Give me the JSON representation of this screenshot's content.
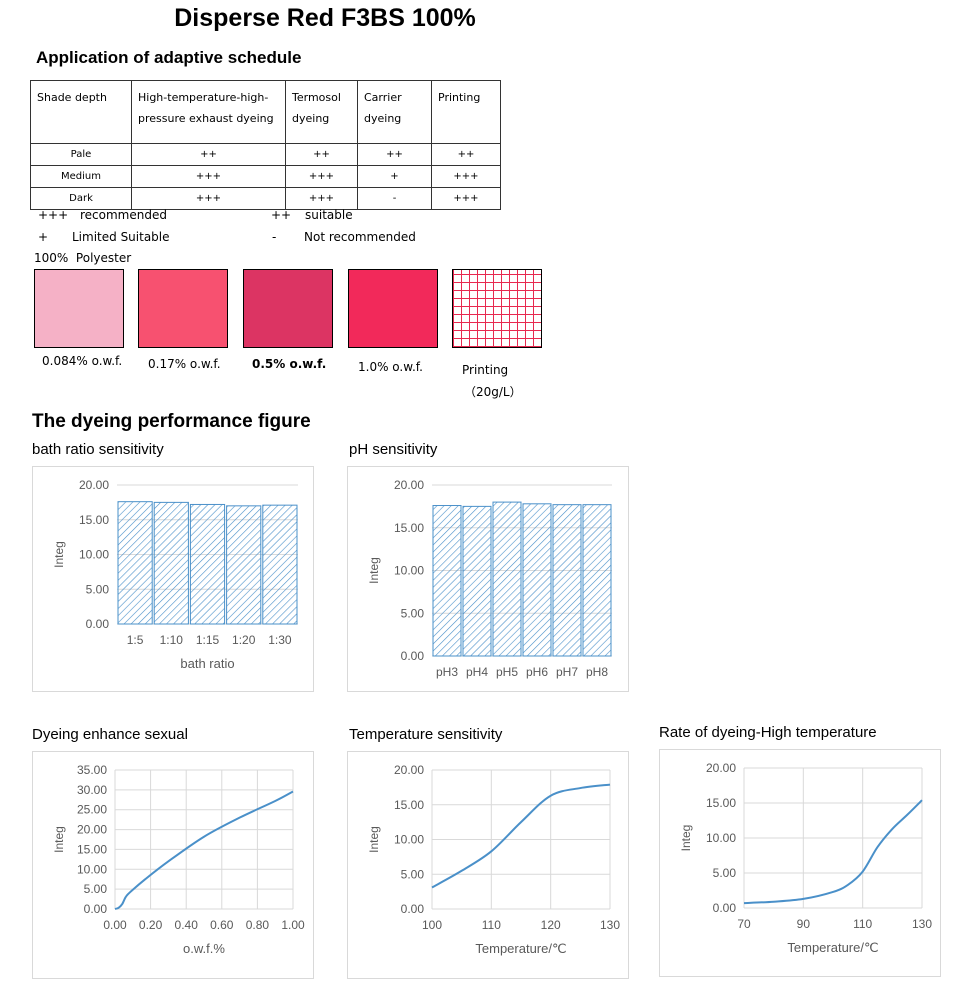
{
  "title": "Disperse Red F3BS 100%",
  "schedule": {
    "heading": "Application of adaptive schedule",
    "columns": [
      "Shade depth",
      "High-temperature-high-pressure exhaust dyeing",
      "Termosol dyeing",
      "Carrier dyeing",
      "Printing"
    ],
    "rows": [
      {
        "depth": "Pale",
        "values": [
          "++",
          "++",
          "++",
          "++"
        ]
      },
      {
        "depth": "Medium",
        "values": [
          "+++",
          "+++",
          "+",
          "+++"
        ]
      },
      {
        "depth": "Dark",
        "values": [
          "+++",
          "+++",
          "-",
          "+++"
        ]
      }
    ]
  },
  "legend": {
    "rec_sym": "+++",
    "rec_text": "recommended",
    "suit_sym": "++",
    "suit_text": "suitable",
    "lim_sym": "+",
    "lim_text": "Limited Suitable",
    "not_sym": "-",
    "not_text": "Not recommended"
  },
  "substrate": "100%  Polyester",
  "swatches": [
    {
      "label": "0.084% o.w.f.",
      "color": "#f5b1c6"
    },
    {
      "label": "0.17% o.w.f.",
      "color": "#f75170"
    },
    {
      "label": "0.5% o.w.f.",
      "color": "#dc3463"
    },
    {
      "label": "1.0% o.w.f.",
      "color": "#f2295a"
    }
  ],
  "printing_swatch": {
    "label1": "Printing",
    "label2": "（20g/L）",
    "grid_color": "#e8294f"
  },
  "performance_heading": "The dyeing performance figure",
  "charts": {
    "bath": {
      "title": "bath ratio sensitivity"
    },
    "ph": {
      "title": "pH sensitivity"
    },
    "enhance": {
      "title": "Dyeing enhance sexual"
    },
    "temp": {
      "title": "Temperature sensitivity"
    },
    "rate": {
      "title": "Rate of dyeing-High temperature"
    }
  },
  "chart_data": [
    {
      "type": "bar",
      "title": "bath ratio sensitivity",
      "categories": [
        "1:5",
        "1:10",
        "1:15",
        "1:20",
        "1:30"
      ],
      "values": [
        17.6,
        17.5,
        17.2,
        17.0,
        17.1
      ],
      "xlabel": "bath ratio",
      "ylabel": "Integ",
      "ylim": [
        0,
        20
      ],
      "yticks": [
        "0.00",
        "5.00",
        "10.00",
        "15.00",
        "20.00"
      ]
    },
    {
      "type": "bar",
      "title": "pH sensitivity",
      "categories": [
        "pH3",
        "pH4",
        "pH5",
        "pH6",
        "pH7",
        "pH8"
      ],
      "values": [
        17.6,
        17.5,
        18.0,
        17.8,
        17.7,
        17.7
      ],
      "xlabel": "",
      "ylabel": "Integ",
      "ylim": [
        0,
        20
      ],
      "yticks": [
        "0.00",
        "5.00",
        "10.00",
        "15.00",
        "20.00"
      ]
    },
    {
      "type": "line",
      "title": "Dyeing enhance sexual",
      "x": [
        0,
        0.02,
        0.04,
        0.06,
        0.084,
        0.17,
        0.3,
        0.5,
        0.7,
        0.9,
        1.0
      ],
      "y": [
        0,
        0.3,
        1.2,
        3.0,
        4.2,
        7.5,
        12.0,
        18.2,
        23.0,
        27.2,
        29.6
      ],
      "xlabel": "o.w.f.%",
      "ylabel": "Integ",
      "xlim": [
        0,
        1
      ],
      "ylim": [
        0,
        35
      ],
      "xticks": [
        "0.00",
        "0.20",
        "0.40",
        "0.60",
        "0.80",
        "1.00"
      ],
      "yticks": [
        "0.00",
        "5.00",
        "10.00",
        "15.00",
        "20.00",
        "25.00",
        "30.00",
        "35.00"
      ]
    },
    {
      "type": "line",
      "title": "Temperature sensitivity",
      "x": [
        100,
        105,
        110,
        115,
        120,
        125,
        130
      ],
      "y": [
        3.1,
        5.5,
        8.3,
        12.5,
        16.3,
        17.4,
        17.9
      ],
      "xlabel": "Temperature/℃",
      "ylabel": "Integ",
      "xlim": [
        100,
        130
      ],
      "ylim": [
        0,
        20
      ],
      "xticks": [
        "100",
        "110",
        "120",
        "130"
      ],
      "yticks": [
        "0.00",
        "5.00",
        "10.00",
        "15.00",
        "20.00"
      ]
    },
    {
      "type": "line",
      "title": "Rate of dyeing-High temperature",
      "x": [
        70,
        80,
        90,
        100,
        105,
        110,
        115,
        120,
        125,
        130
      ],
      "y": [
        0.7,
        0.9,
        1.3,
        2.3,
        3.3,
        5.2,
        8.7,
        11.3,
        13.3,
        15.4
      ],
      "xlabel": "Temperature/℃",
      "ylabel": "Integ",
      "xlim": [
        70,
        130
      ],
      "ylim": [
        0,
        20
      ],
      "xticks": [
        "70",
        "90",
        "110",
        "130"
      ],
      "yticks": [
        "0.00",
        "5.00",
        "10.00",
        "15.00",
        "20.00"
      ]
    }
  ]
}
